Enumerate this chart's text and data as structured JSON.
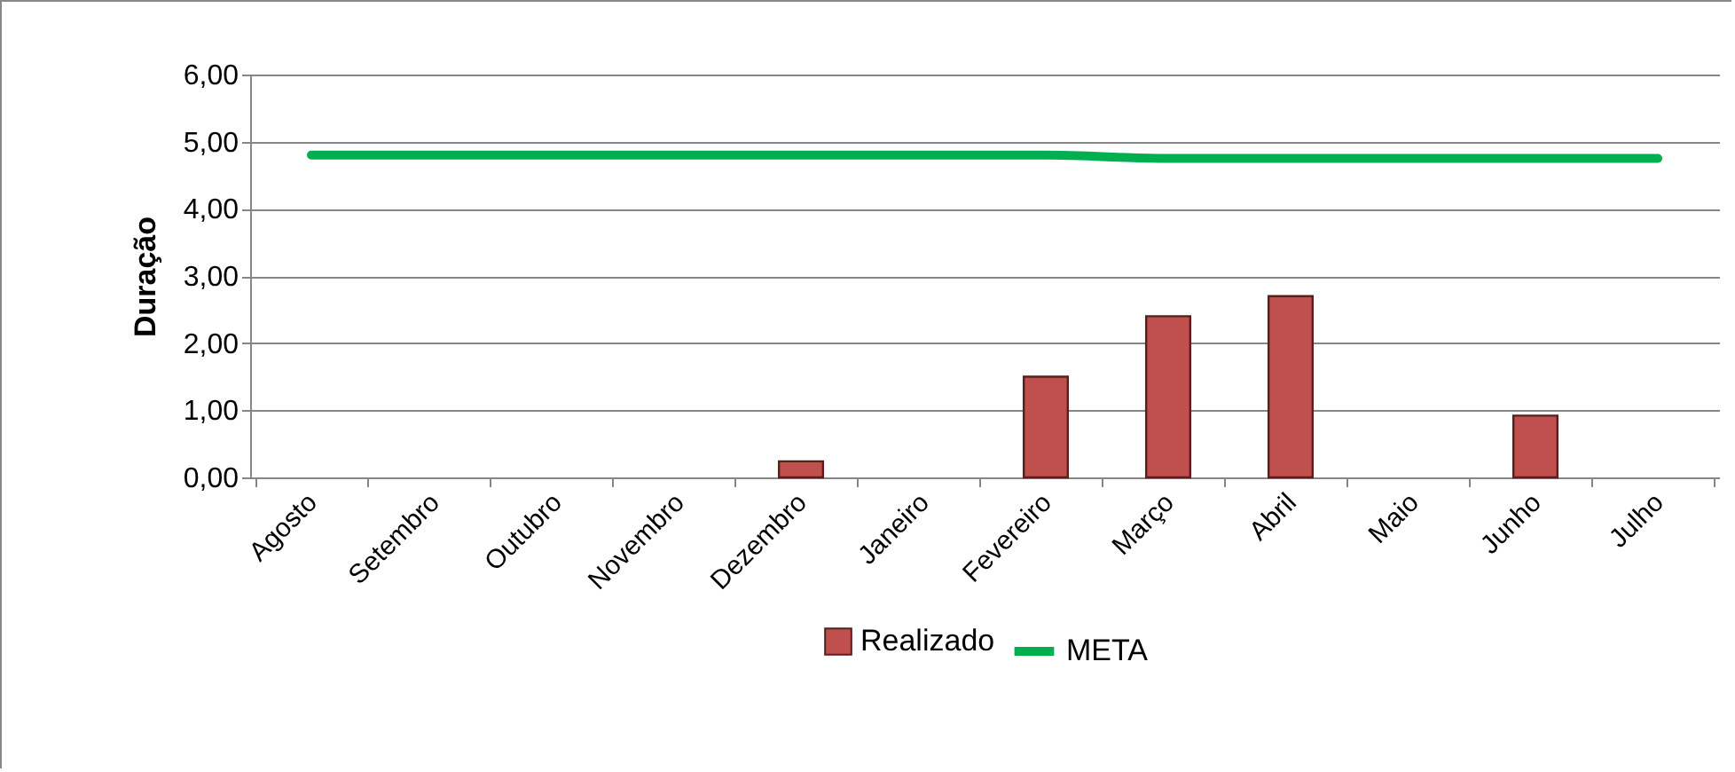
{
  "chart_data": {
    "type": "bar",
    "ylabel": "Duração",
    "categories": [
      "Agosto",
      "Setembro",
      "Outubro",
      "Novembro",
      "Dezembro",
      "Janeiro",
      "Fevereiro",
      "Março",
      "Abril",
      "Maio",
      "Junho",
      "Julho"
    ],
    "series": [
      {
        "name": "Realizado",
        "color": "#c0504d",
        "values": [
          null,
          null,
          null,
          null,
          0.24,
          null,
          1.5,
          2.4,
          2.7,
          null,
          0.92,
          null
        ]
      },
      {
        "name": "META",
        "type": "line",
        "color": "#00b050",
        "values": [
          4.8,
          4.8,
          4.8,
          4.8,
          4.8,
          4.8,
          4.8,
          4.75,
          4.75,
          4.75,
          4.75,
          4.75
        ]
      }
    ],
    "ylim": [
      0,
      6
    ],
    "yticks": [
      {
        "value": 0,
        "label": "0,00"
      },
      {
        "value": 1,
        "label": "1,00"
      },
      {
        "value": 2,
        "label": "2,00"
      },
      {
        "value": 3,
        "label": "3,00"
      },
      {
        "value": 4,
        "label": "4,00"
      },
      {
        "value": 5,
        "label": "5,00"
      },
      {
        "value": 6,
        "label": "6,00"
      }
    ],
    "grid": "y",
    "legend": "bottom",
    "marker": "none",
    "line_style": "solid"
  }
}
